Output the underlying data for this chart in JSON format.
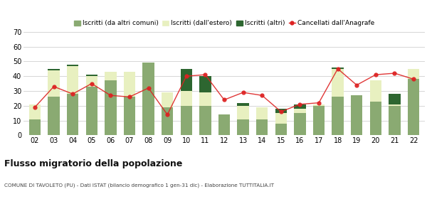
{
  "years": [
    "02",
    "03",
    "04",
    "05",
    "06",
    "07",
    "08",
    "09",
    "10",
    "11",
    "12",
    "13",
    "14",
    "15",
    "16",
    "17",
    "18",
    "19",
    "20",
    "21",
    "22"
  ],
  "iscritti_altri_comuni": [
    11,
    26,
    28,
    33,
    37,
    26,
    49,
    19,
    20,
    20,
    14,
    11,
    11,
    8,
    15,
    20,
    26,
    27,
    23,
    20,
    38
  ],
  "iscritti_estero": [
    10,
    18,
    19,
    7,
    6,
    17,
    0,
    10,
    10,
    9,
    0,
    9,
    8,
    7,
    3,
    1,
    19,
    0,
    14,
    1,
    7
  ],
  "iscritti_altri": [
    0,
    1,
    1,
    1,
    0,
    0,
    0,
    0,
    15,
    11,
    0,
    2,
    0,
    3,
    3,
    0,
    1,
    0,
    0,
    7,
    0
  ],
  "cancellati": [
    19,
    33,
    28,
    35,
    27,
    26,
    32,
    14,
    40,
    41,
    24,
    29,
    27,
    16,
    21,
    22,
    45,
    34,
    41,
    42,
    38
  ],
  "color_altri_comuni": "#8aaa72",
  "color_estero": "#e8f0c0",
  "color_altri": "#2d6630",
  "color_cancellati": "#dd2222",
  "ylim": [
    0,
    70
  ],
  "yticks": [
    0,
    10,
    20,
    30,
    40,
    50,
    60,
    70
  ],
  "title": "Flusso migratorio della popolazione",
  "subtitle": "COMUNE DI TAVOLETO (PU) - Dati ISTAT (bilancio demografico 1 gen-31 dic) - Elaborazione TUTTITALIA.IT",
  "legend_labels": [
    "Iscritti (da altri comuni)",
    "Iscritti (dall'estero)",
    "Iscritti (altri)",
    "Cancellati dall'Anagrafe"
  ],
  "bg_color": "#ffffff",
  "grid_color": "#d0d0d0"
}
